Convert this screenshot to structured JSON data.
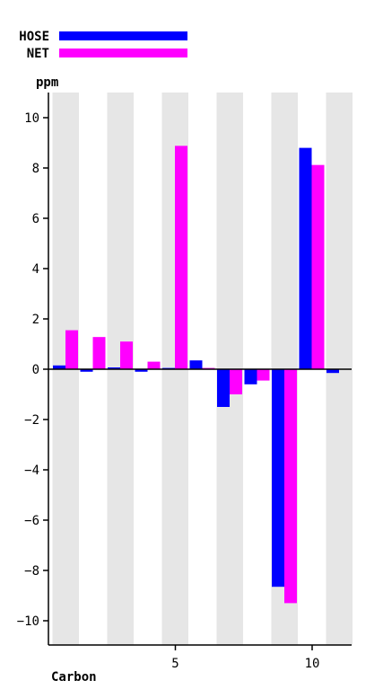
{
  "chart_data": {
    "type": "bar",
    "xlabel": "Carbon",
    "ylabel": "ppm",
    "ylim": [
      -11,
      11
    ],
    "xticks": [
      5,
      10
    ],
    "yticks": [
      -10,
      -8,
      -6,
      -4,
      -2,
      0,
      2,
      4,
      6,
      8,
      10
    ],
    "categories": [
      1,
      2,
      3,
      4,
      5,
      6,
      7,
      8,
      9,
      10,
      11
    ],
    "legend_position": "top-left",
    "grid": false,
    "alternating_column_bands": true,
    "series": [
      {
        "name": "HOSE",
        "color": "#0000ff",
        "values": [
          0.15,
          -0.1,
          0.03,
          -0.1,
          0.05,
          0.35,
          -1.5,
          -0.6,
          -8.65,
          8.8,
          -0.15
        ]
      },
      {
        "name": "NET",
        "color": "#ff00ff",
        "values": [
          1.55,
          1.28,
          1.1,
          0.3,
          8.88,
          0.05,
          -1.0,
          -0.45,
          -9.3,
          8.12,
          0.0
        ]
      }
    ]
  }
}
